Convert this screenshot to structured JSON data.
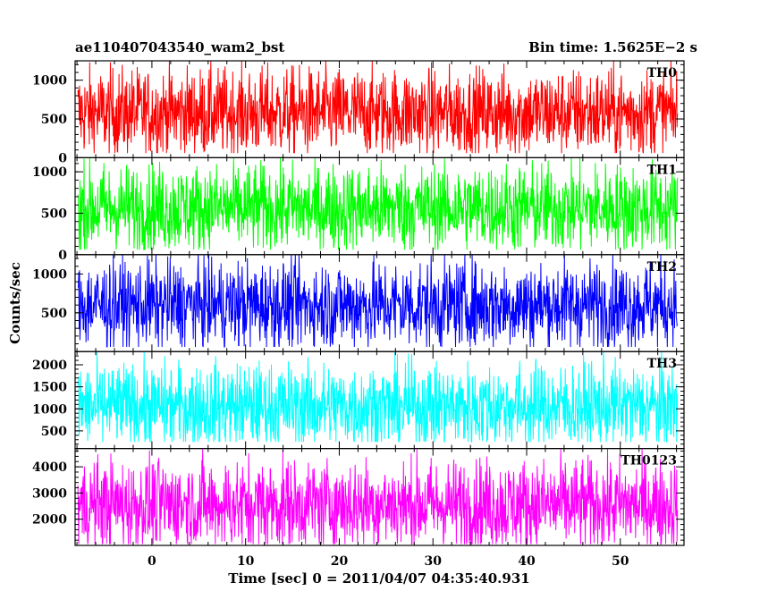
{
  "chart_data": {
    "type": "line",
    "title_left": "ae110407043540_wam2_bst",
    "title_right": "Bin time: 1.5625E−2 s",
    "xlabel": "Time [sec] 0 = 2011/04/07 04:35:40.931",
    "ylabel": "Counts/sec",
    "xlim": [
      -8.2,
      56.8
    ],
    "data_x_range": [
      -7.9,
      56.1
    ],
    "x_ticks": [
      0,
      10,
      20,
      30,
      40,
      50
    ],
    "x_tick_labels": [
      "0",
      "10",
      "20",
      "30",
      "40",
      "50"
    ],
    "panels": [
      {
        "name": "TH0",
        "color": "#ff0000",
        "ylim": [
          0,
          1250
        ],
        "yticks": [
          0,
          500,
          1000
        ],
        "ytick_labels": [
          "0",
          "500",
          "1000"
        ],
        "mean": 580,
        "low": 60,
        "high": 1250
      },
      {
        "name": "TH1",
        "color": "#00ff00",
        "ylim": [
          0,
          1170
        ],
        "yticks": [
          0,
          500,
          1000
        ],
        "ytick_labels": [
          "0",
          "500",
          "1000"
        ],
        "mean": 560,
        "low": 60,
        "high": 1170
      },
      {
        "name": "TH2",
        "color": "#0000ff",
        "ylim": [
          0,
          1250
        ],
        "yticks": [
          500,
          1000
        ],
        "ytick_labels": [
          "500",
          "1000"
        ],
        "mean": 600,
        "low": 60,
        "high": 1250
      },
      {
        "name": "TH3",
        "color": "#00ffff",
        "ylim": [
          100,
          2300
        ],
        "yticks": [
          500,
          1000,
          1500,
          2000
        ],
        "ytick_labels": [
          "500",
          "1000",
          "1500",
          "2000"
        ],
        "mean": 1050,
        "low": 250,
        "high": 2300
      },
      {
        "name": "TH0123",
        "color": "#ff00ff",
        "ylim": [
          1000,
          4700
        ],
        "yticks": [
          2000,
          3000,
          4000
        ],
        "ytick_labels": [
          "2000",
          "3000",
          "4000"
        ],
        "mean": 2550,
        "low": 1050,
        "high": 4700
      }
    ]
  }
}
